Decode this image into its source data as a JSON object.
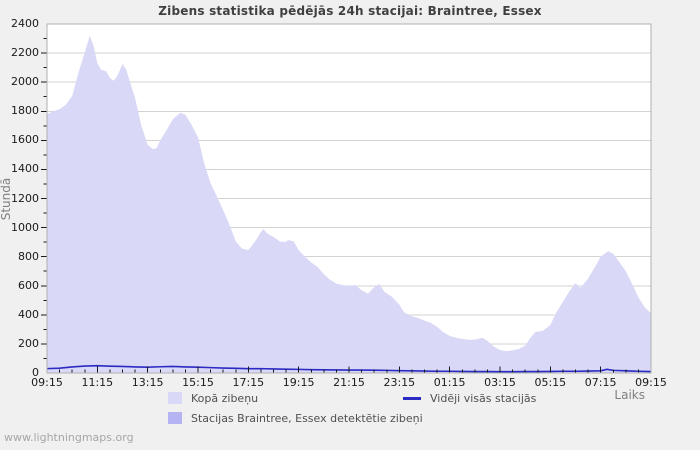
{
  "title": "Zibens statistika pēdējās 24h stacijai: Braintree, Essex",
  "watermark": "www.lightningmaps.org",
  "y_axis": {
    "label": "Stundā",
    "ticks": [
      0,
      200,
      400,
      600,
      800,
      1000,
      1200,
      1400,
      1600,
      1800,
      2000,
      2200,
      2400
    ],
    "minor_step": 100
  },
  "x_axis": {
    "label": "Laiks",
    "tick_labels": [
      "09:15",
      "11:15",
      "13:15",
      "15:15",
      "17:15",
      "19:15",
      "21:15",
      "23:15",
      "01:15",
      "03:15",
      "05:15",
      "07:15",
      "09:15"
    ],
    "major_step_hours": 2,
    "minor_step_hours": 0.5
  },
  "legend": [
    {
      "label": "Kopā zibeņu",
      "type": "area",
      "color": "#d9d9f7"
    },
    {
      "label": "Vidēji visās stacijās",
      "type": "line",
      "color": "#2b2bc4"
    },
    {
      "label": "Stacijas Braintree, Essex detektētie zibeņi",
      "type": "area",
      "color": "#b6b3f2"
    }
  ],
  "colors": {
    "bg": "#f0f0f0",
    "plot_bg": "#ffffff",
    "grid": "#d3d3d3",
    "frame": "#b0b0b0",
    "tick": "#1a1a1a",
    "tick_label": "#1a1a1a",
    "title": "#404040",
    "axis_title": "#808080",
    "legend_text": "#505050",
    "watermark": "#a6a6a6",
    "area_total": "#d9d9f7",
    "area_station": "#b6b3f2",
    "avg_line": "#2b2bc4"
  },
  "chart_data": {
    "type": "area",
    "title": "Zibens statistika pēdējās 24h stacijai: Braintree, Essex",
    "xlabel": "Laiks",
    "ylabel": "Stundā",
    "x_unit": "hours_after_09:15",
    "hours_span": 24,
    "ylim": [
      0,
      2400
    ],
    "grid": true,
    "legend_position": "bottom",
    "series": [
      {
        "name": "Kopā zibeņu",
        "type": "area",
        "color": "#d9d9f7",
        "points": [
          [
            0,
            1780
          ],
          [
            0.25,
            1800
          ],
          [
            0.5,
            1815
          ],
          [
            0.75,
            1845
          ],
          [
            1,
            1905
          ],
          [
            1.25,
            2065
          ],
          [
            1.5,
            2205
          ],
          [
            1.7,
            2320
          ],
          [
            1.85,
            2250
          ],
          [
            2,
            2130
          ],
          [
            2.15,
            2085
          ],
          [
            2.35,
            2075
          ],
          [
            2.5,
            2030
          ],
          [
            2.65,
            2010
          ],
          [
            2.8,
            2045
          ],
          [
            3,
            2125
          ],
          [
            3.15,
            2085
          ],
          [
            3.3,
            2000
          ],
          [
            3.5,
            1890
          ],
          [
            3.75,
            1700
          ],
          [
            4,
            1570
          ],
          [
            4.2,
            1540
          ],
          [
            4.35,
            1545
          ],
          [
            4.5,
            1600
          ],
          [
            4.75,
            1670
          ],
          [
            5,
            1745
          ],
          [
            5.3,
            1790
          ],
          [
            5.5,
            1775
          ],
          [
            5.75,
            1705
          ],
          [
            6,
            1620
          ],
          [
            6.25,
            1440
          ],
          [
            6.5,
            1305
          ],
          [
            6.75,
            1215
          ],
          [
            7,
            1120
          ],
          [
            7.25,
            1020
          ],
          [
            7.5,
            905
          ],
          [
            7.75,
            855
          ],
          [
            8,
            845
          ],
          [
            8.25,
            900
          ],
          [
            8.5,
            970
          ],
          [
            8.6,
            990
          ],
          [
            8.75,
            960
          ],
          [
            9,
            935
          ],
          [
            9.25,
            905
          ],
          [
            9.45,
            900
          ],
          [
            9.6,
            915
          ],
          [
            9.8,
            905
          ],
          [
            10,
            845
          ],
          [
            10.25,
            800
          ],
          [
            10.5,
            760
          ],
          [
            10.75,
            730
          ],
          [
            11,
            680
          ],
          [
            11.25,
            640
          ],
          [
            11.5,
            615
          ],
          [
            11.75,
            605
          ],
          [
            12,
            600
          ],
          [
            12.25,
            605
          ],
          [
            12.5,
            570
          ],
          [
            12.75,
            545
          ],
          [
            13,
            590
          ],
          [
            13.2,
            612
          ],
          [
            13.4,
            560
          ],
          [
            13.7,
            525
          ],
          [
            14,
            470
          ],
          [
            14.2,
            415
          ],
          [
            14.5,
            390
          ],
          [
            14.75,
            378
          ],
          [
            15,
            360
          ],
          [
            15.25,
            345
          ],
          [
            15.5,
            318
          ],
          [
            15.75,
            280
          ],
          [
            16,
            255
          ],
          [
            16.25,
            242
          ],
          [
            16.5,
            235
          ],
          [
            16.8,
            228
          ],
          [
            17.1,
            232
          ],
          [
            17.3,
            242
          ],
          [
            17.5,
            222
          ],
          [
            17.75,
            182
          ],
          [
            18,
            158
          ],
          [
            18.25,
            150
          ],
          [
            18.5,
            156
          ],
          [
            18.75,
            166
          ],
          [
            19,
            188
          ],
          [
            19.2,
            240
          ],
          [
            19.4,
            282
          ],
          [
            19.7,
            290
          ],
          [
            20,
            330
          ],
          [
            20.25,
            420
          ],
          [
            20.5,
            490
          ],
          [
            20.75,
            560
          ],
          [
            21,
            618
          ],
          [
            21.2,
            585
          ],
          [
            21.5,
            650
          ],
          [
            21.75,
            722
          ],
          [
            22,
            800
          ],
          [
            22.3,
            838
          ],
          [
            22.5,
            820
          ],
          [
            22.75,
            762
          ],
          [
            23,
            700
          ],
          [
            23.25,
            612
          ],
          [
            23.5,
            520
          ],
          [
            23.75,
            452
          ],
          [
            24,
            410
          ]
        ]
      },
      {
        "name": "Stacijas Braintree, Essex detektētie zibeņi",
        "type": "area",
        "color": "#b6b3f2",
        "points": [
          [
            0,
            0
          ],
          [
            24,
            0
          ]
        ]
      },
      {
        "name": "Vidēji visās stacijās",
        "type": "line",
        "color": "#2b2bc4",
        "points": [
          [
            0,
            30
          ],
          [
            0.5,
            33
          ],
          [
            1,
            42
          ],
          [
            1.5,
            48
          ],
          [
            2,
            50
          ],
          [
            2.5,
            47
          ],
          [
            3,
            45
          ],
          [
            3.5,
            42
          ],
          [
            4,
            40
          ],
          [
            4.5,
            43
          ],
          [
            5,
            45
          ],
          [
            5.5,
            42
          ],
          [
            6,
            40
          ],
          [
            6.5,
            37
          ],
          [
            7,
            34
          ],
          [
            7.5,
            32
          ],
          [
            8,
            30
          ],
          [
            8.5,
            30
          ],
          [
            9,
            28
          ],
          [
            9.5,
            26
          ],
          [
            10,
            25
          ],
          [
            10.5,
            23
          ],
          [
            11,
            22
          ],
          [
            11.5,
            21
          ],
          [
            12,
            20
          ],
          [
            12.5,
            20
          ],
          [
            13,
            19
          ],
          [
            13.5,
            18
          ],
          [
            14,
            16
          ],
          [
            14.5,
            15
          ],
          [
            15,
            13
          ],
          [
            15.5,
            12
          ],
          [
            16,
            12
          ],
          [
            16.5,
            11
          ],
          [
            17,
            10
          ],
          [
            17.5,
            10
          ],
          [
            18,
            9
          ],
          [
            18.5,
            9
          ],
          [
            19,
            10
          ],
          [
            19.5,
            10
          ],
          [
            20,
            11
          ],
          [
            20.5,
            12
          ],
          [
            21,
            12
          ],
          [
            21.5,
            13
          ],
          [
            22,
            15
          ],
          [
            22.25,
            25
          ],
          [
            22.5,
            18
          ],
          [
            23,
            15
          ],
          [
            23.5,
            12
          ],
          [
            24,
            10
          ]
        ]
      }
    ]
  }
}
